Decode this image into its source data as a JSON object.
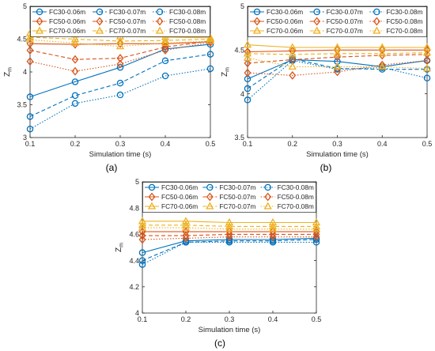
{
  "figure": {
    "panel_labels": [
      "(a)",
      "(b)",
      "(c)"
    ]
  },
  "series_styles": [
    {
      "name": "FC30-0.06m",
      "color": "#0072BD",
      "dash": "solid",
      "marker": "circle"
    },
    {
      "name": "FC30-0.07m",
      "color": "#0072BD",
      "dash": "dashed",
      "marker": "circle"
    },
    {
      "name": "FC30-0.08m",
      "color": "#0072BD",
      "dash": "dotted",
      "marker": "circle"
    },
    {
      "name": "FC50-0.06m",
      "color": "#D95319",
      "dash": "solid",
      "marker": "diamond"
    },
    {
      "name": "FC50-0.07m",
      "color": "#D95319",
      "dash": "dashed",
      "marker": "diamond"
    },
    {
      "name": "FC50-0.08m",
      "color": "#D95319",
      "dash": "dotted",
      "marker": "diamond"
    },
    {
      "name": "FC70-0.06m",
      "color": "#EDB120",
      "dash": "solid",
      "marker": "triangle"
    },
    {
      "name": "FC70-0.07m",
      "color": "#EDB120",
      "dash": "dashed",
      "marker": "triangle"
    },
    {
      "name": "FC70-0.08m",
      "color": "#EDB120",
      "dash": "dotted",
      "marker": "triangle"
    }
  ],
  "chart_data": [
    {
      "type": "line",
      "panel": "(a)",
      "xlabel": "Simulation time (s)",
      "ylabel": "Z_m",
      "x": [
        0.1,
        0.2,
        0.3,
        0.4,
        0.5
      ],
      "xlim": [
        0.1,
        0.5
      ],
      "ylim": [
        3,
        5
      ],
      "xticks": [
        "0.1",
        "0.2",
        "0.3",
        "0.4",
        "0.5"
      ],
      "yticks": [
        "3",
        "3.5",
        "4",
        "4.5",
        "5"
      ],
      "legend": "top",
      "series": [
        {
          "name": "FC30-0.06m",
          "values": [
            3.62,
            3.85,
            4.07,
            4.35,
            4.42
          ]
        },
        {
          "name": "FC30-0.07m",
          "values": [
            3.32,
            3.64,
            3.83,
            4.17,
            4.27
          ]
        },
        {
          "name": "FC30-0.08m",
          "values": [
            3.13,
            3.52,
            3.65,
            3.94,
            4.05
          ]
        },
        {
          "name": "FC50-0.06m",
          "values": [
            4.43,
            4.42,
            4.43,
            4.43,
            4.46
          ]
        },
        {
          "name": "FC50-0.07m",
          "values": [
            4.33,
            4.19,
            4.21,
            4.38,
            4.47
          ]
        },
        {
          "name": "FC50-0.08m",
          "values": [
            4.16,
            4.01,
            4.12,
            4.33,
            4.45
          ]
        },
        {
          "name": "FC70-0.06m",
          "values": [
            4.59,
            4.57,
            4.54,
            4.53,
            4.52
          ]
        },
        {
          "name": "FC70-0.07m",
          "values": [
            4.53,
            4.5,
            4.47,
            4.48,
            4.5
          ]
        },
        {
          "name": "FC70-0.08m",
          "values": [
            4.49,
            4.44,
            4.39,
            4.44,
            4.47
          ]
        }
      ]
    },
    {
      "type": "line",
      "panel": "(b)",
      "xlabel": "Simulation time (s)",
      "ylabel": "Z_m",
      "x": [
        0.1,
        0.2,
        0.3,
        0.4,
        0.5
      ],
      "xlim": [
        0.1,
        0.5
      ],
      "ylim": [
        3.5,
        5
      ],
      "xticks": [
        "0.1",
        "0.2",
        "0.3",
        "0.4",
        "0.5"
      ],
      "yticks": [
        "3.5",
        "4",
        "4.5",
        "5"
      ],
      "legend": "top",
      "series": [
        {
          "name": "FC30-0.06m",
          "values": [
            4.17,
            4.39,
            4.37,
            4.31,
            4.38
          ]
        },
        {
          "name": "FC30-0.07m",
          "values": [
            4.06,
            4.4,
            4.29,
            4.28,
            4.28
          ]
        },
        {
          "name": "FC30-0.08m",
          "values": [
            3.93,
            4.38,
            4.28,
            4.3,
            4.18
          ]
        },
        {
          "name": "FC50-0.06m",
          "values": [
            4.48,
            4.49,
            4.5,
            4.5,
            4.5
          ]
        },
        {
          "name": "FC50-0.07m",
          "values": [
            4.35,
            4.39,
            4.42,
            4.44,
            4.45
          ]
        },
        {
          "name": "FC50-0.08m",
          "values": [
            4.24,
            4.21,
            4.25,
            4.33,
            4.38
          ]
        },
        {
          "name": "FC70-0.06m",
          "values": [
            4.56,
            4.53,
            4.53,
            4.53,
            4.53
          ]
        },
        {
          "name": "FC70-0.07m",
          "values": [
            4.46,
            4.45,
            4.46,
            4.46,
            4.47
          ]
        },
        {
          "name": "FC70-0.08m",
          "values": [
            4.41,
            4.31,
            4.31,
            4.31,
            4.29
          ]
        }
      ]
    },
    {
      "type": "line",
      "panel": "(c)",
      "xlabel": "Simulation time (s)",
      "ylabel": "Z_m",
      "x": [
        0.1,
        0.2,
        0.3,
        0.4,
        0.5
      ],
      "xlim": [
        0.1,
        0.5
      ],
      "ylim": [
        4,
        5
      ],
      "xticks": [
        "0.1",
        "0.2",
        "0.3",
        "0.4",
        "0.5"
      ],
      "yticks": [
        "4",
        "4.2",
        "4.4",
        "4.6",
        "4.8",
        "5"
      ],
      "legend": "top",
      "series": [
        {
          "name": "FC30-0.06m",
          "values": [
            4.46,
            4.55,
            4.56,
            4.56,
            4.57
          ]
        },
        {
          "name": "FC30-0.07m",
          "values": [
            4.4,
            4.54,
            4.55,
            4.55,
            4.56
          ]
        },
        {
          "name": "FC30-0.08m",
          "values": [
            4.37,
            4.54,
            4.54,
            4.54,
            4.54
          ]
        },
        {
          "name": "FC50-0.06m",
          "values": [
            4.62,
            4.62,
            4.62,
            4.62,
            4.62
          ]
        },
        {
          "name": "FC50-0.07m",
          "values": [
            4.59,
            4.59,
            4.6,
            4.6,
            4.6
          ]
        },
        {
          "name": "FC50-0.08m",
          "values": [
            4.56,
            4.57,
            4.58,
            4.58,
            4.58
          ]
        },
        {
          "name": "FC70-0.06m",
          "values": [
            4.7,
            4.7,
            4.69,
            4.69,
            4.69
          ]
        },
        {
          "name": "FC70-0.07m",
          "values": [
            4.67,
            4.67,
            4.66,
            4.66,
            4.66
          ]
        },
        {
          "name": "FC70-0.08m",
          "values": [
            4.65,
            4.65,
            4.64,
            4.64,
            4.64
          ]
        }
      ]
    }
  ]
}
